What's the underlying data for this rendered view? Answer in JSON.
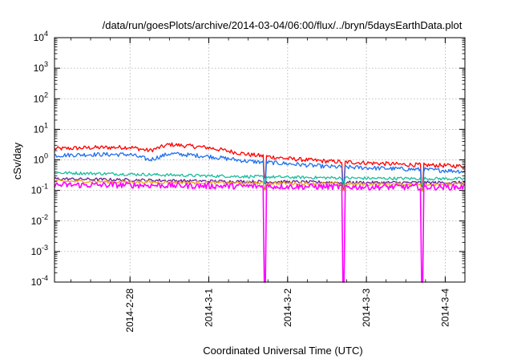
{
  "chart_data": {
    "type": "line",
    "title": "/data/run/goesPlots/archive/2014-03-04/06:00/flux/../bryn/5daysEarthData.plot",
    "xlabel": "Coordinated Universal Time (UTC)",
    "ylabel": "cSv/day",
    "yscale": "log",
    "ylim": [
      0.0001,
      10000
    ],
    "y_ticks": [
      {
        "base": "10",
        "exp": "-4",
        "value": 0.0001
      },
      {
        "base": "10",
        "exp": "-3",
        "value": 0.001
      },
      {
        "base": "10",
        "exp": "-2",
        "value": 0.01
      },
      {
        "base": "10",
        "exp": "-1",
        "value": 0.1
      },
      {
        "base": "10",
        "exp": "0",
        "value": 1
      },
      {
        "base": "10",
        "exp": "1",
        "value": 10
      },
      {
        "base": "10",
        "exp": "2",
        "value": 100
      },
      {
        "base": "10",
        "exp": "3",
        "value": 1000
      },
      {
        "base": "10",
        "exp": "4",
        "value": 10000
      }
    ],
    "xlim": [
      "2014-02-27 01:00",
      "2014-03-04 06:00"
    ],
    "x_ticks": [
      "2014-2-28",
      "2014-3-1",
      "2014-3-2",
      "2014-3-3",
      "2014-3-4"
    ],
    "x_tick_dates": [
      "2014-02-28 00:00",
      "2014-03-01 00:00",
      "2014-03-02 00:00",
      "2014-03-03 00:00",
      "2014-03-04 00:00"
    ],
    "grid": true,
    "legend": "none",
    "dropouts": [
      "2014-03-01 17:00",
      "2014-03-02 17:00",
      "2014-03-03 17:00"
    ],
    "series": [
      {
        "color": "#ff0000",
        "x": [
          "2014-02-27 01:00",
          "2014-02-27 12:00",
          "2014-02-28 00:00",
          "2014-02-28 06:00",
          "2014-02-28 12:00",
          "2014-03-01 00:00",
          "2014-03-01 12:00",
          "2014-03-02 00:00",
          "2014-03-02 12:00",
          "2014-03-03 00:00",
          "2014-03-03 12:00",
          "2014-03-04 00:00",
          "2014-03-04 06:00"
        ],
        "y": [
          2.3,
          2.5,
          2.6,
          2.0,
          3.2,
          2.5,
          1.5,
          1.1,
          0.9,
          0.8,
          0.7,
          0.65,
          0.62
        ]
      },
      {
        "color": "#1e6ef0",
        "x": [
          "2014-02-27 01:00",
          "2014-02-27 12:00",
          "2014-02-28 00:00",
          "2014-02-28 06:00",
          "2014-02-28 12:00",
          "2014-03-01 00:00",
          "2014-03-01 12:00",
          "2014-03-02 00:00",
          "2014-03-02 12:00",
          "2014-03-03 00:00",
          "2014-03-03 12:00",
          "2014-03-04 00:00",
          "2014-03-04 06:00"
        ],
        "y": [
          1.4,
          1.5,
          1.5,
          1.0,
          1.6,
          1.3,
          0.9,
          0.75,
          0.6,
          0.55,
          0.5,
          0.45,
          0.42
        ]
      },
      {
        "color": "#1abc9c",
        "x": [
          "2014-02-27 01:00",
          "2014-02-28 00:00",
          "2014-03-01 00:00",
          "2014-03-02 00:00",
          "2014-03-03 00:00",
          "2014-03-04 06:00"
        ],
        "y": [
          0.38,
          0.34,
          0.3,
          0.27,
          0.25,
          0.24
        ]
      },
      {
        "color": "#6a1b9a",
        "x": [
          "2014-02-27 01:00",
          "2014-02-28 00:00",
          "2014-03-01 00:00",
          "2014-03-02 00:00",
          "2014-03-03 00:00",
          "2014-03-04 06:00"
        ],
        "y": [
          0.24,
          0.22,
          0.2,
          0.19,
          0.18,
          0.18
        ]
      },
      {
        "color": "#e6a817",
        "x": [
          "2014-02-27 01:00",
          "2014-02-28 00:00",
          "2014-03-01 00:00",
          "2014-03-02 00:00",
          "2014-03-03 00:00",
          "2014-03-04 06:00"
        ],
        "y": [
          0.2,
          0.19,
          0.18,
          0.17,
          0.16,
          0.16
        ]
      },
      {
        "color": "#ff00ff",
        "x": [
          "2014-02-27 01:00",
          "2014-02-28 00:00",
          "2014-03-01 00:00",
          "2014-03-02 00:00",
          "2014-03-03 00:00",
          "2014-03-04 06:00"
        ],
        "y": [
          0.15,
          0.15,
          0.14,
          0.135,
          0.13,
          0.13
        ]
      }
    ]
  }
}
